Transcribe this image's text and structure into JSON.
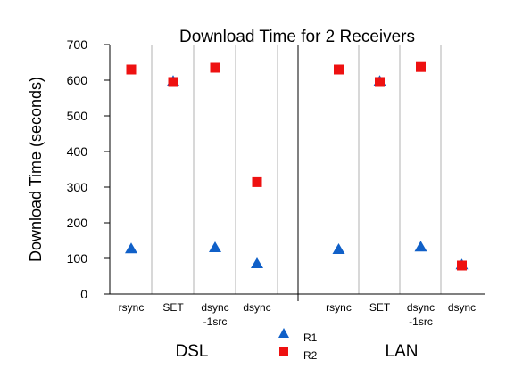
{
  "chart_data": {
    "type": "scatter",
    "title": "Download Time for 2 Receivers",
    "ylabel": "Download Time (seconds)",
    "xlabel": "",
    "ylim": [
      0,
      700
    ],
    "yticks": [
      0,
      100,
      200,
      300,
      400,
      500,
      600,
      700
    ],
    "groups": [
      {
        "label": "DSL",
        "categories": [
          {
            "lines": [
              "rsync"
            ]
          },
          {
            "lines": [
              "SET"
            ]
          },
          {
            "lines": [
              "dsync",
              "-1src"
            ]
          },
          {
            "lines": [
              "dsync"
            ]
          }
        ]
      },
      {
        "label": "LAN",
        "categories": [
          {
            "lines": [
              "rsync"
            ]
          },
          {
            "lines": [
              "SET"
            ]
          },
          {
            "lines": [
              "dsync",
              "-1src"
            ]
          },
          {
            "lines": [
              "dsync"
            ]
          }
        ]
      }
    ],
    "series": [
      {
        "name": "R1",
        "marker": "triangle",
        "color": "#1060c8",
        "values": [
          127,
          597,
          130,
          85,
          125,
          597,
          132,
          82
        ]
      },
      {
        "name": "R2",
        "marker": "square",
        "color": "#ee1111",
        "values": [
          630,
          595,
          635,
          314,
          630,
          595,
          637,
          80
        ]
      }
    ],
    "grid": "vertical-separators",
    "legend": "bottom-center"
  }
}
